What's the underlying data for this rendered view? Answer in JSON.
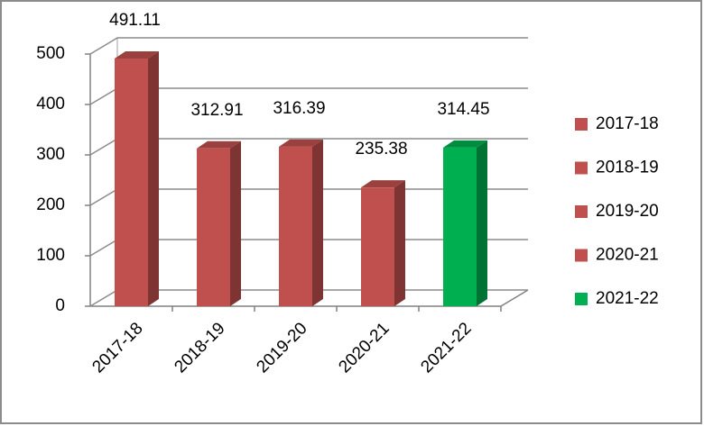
{
  "chart_data": {
    "type": "bar",
    "categories": [
      "2017-18",
      "2018-19",
      "2019-20",
      "2020-21",
      "2021-22"
    ],
    "values": [
      491.11,
      312.91,
      316.39,
      235.38,
      314.45
    ],
    "colors": [
      "#c0504d",
      "#c0504d",
      "#c0504d",
      "#c0504d",
      "#00b050"
    ],
    "ylim": [
      0,
      500
    ],
    "yticks": [
      0,
      100,
      200,
      300,
      400,
      500
    ],
    "grid": true,
    "legend": "right"
  }
}
